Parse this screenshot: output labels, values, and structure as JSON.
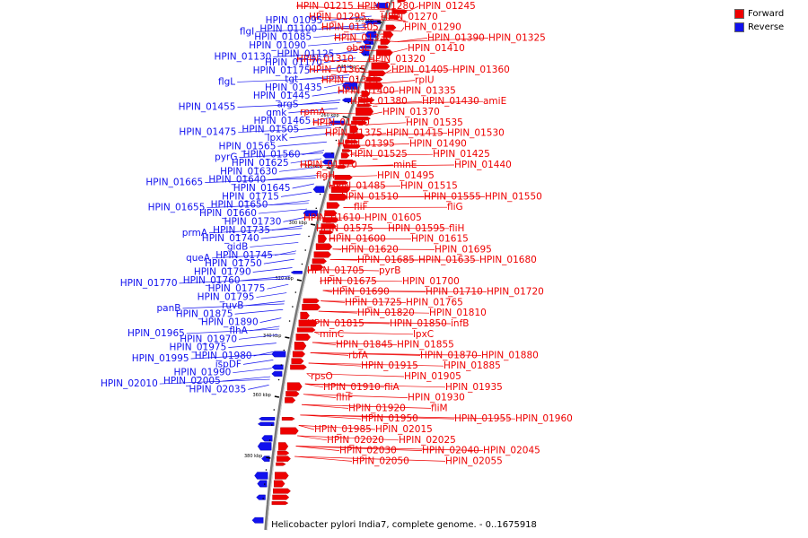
{
  "caption": "Helicobacter pylori India7, complete genome. - 0..1675918",
  "legend": [
    {
      "label": "Forward",
      "color": "#ee0000"
    },
    {
      "label": "Reverse",
      "color": "#1111ee"
    }
  ],
  "colors": {
    "forward": "#ee0000",
    "reverse": "#1111ee",
    "backbone": "#777777"
  },
  "scale_labels": [
    "220 kbp",
    "240 kbp",
    "260 kbp",
    "280 kbp",
    "300 kbp",
    "320 kbp",
    "340 kbp",
    "360 kbp",
    "380 kbp"
  ],
  "forward_labels": [
    "HPIN_01215",
    "HPIN_01280",
    "HPIN_01245",
    "HPIN_01295",
    "HPIN_01270",
    "HPIN_01305",
    "HPIN_01290",
    "HPIN_01330",
    "HPIN_01390",
    "HPIN_01325",
    "obgE",
    "HPIN_01410",
    "HPIN_01310",
    "HPIN_01320",
    "HPIN_01365",
    "HPIN_01405",
    "HPIN_01360",
    "HPIN_01315",
    "rplU",
    "HPIN_01400",
    "HPIN_01335",
    "HPIN_01380",
    "HPIN_01430",
    "amiE",
    "rpmA",
    "HPIN_01370",
    "HPIN_01420",
    "HPIN_01535",
    "HPIN_01375",
    "HPIN_01415",
    "HPIN_01530",
    "HPIN_01395",
    "HPIN_01490",
    "HPIN_01525",
    "HPIN_01425",
    "HPIN_01470",
    "minE",
    "HPIN_01440",
    "flgH",
    "HPIN_01495",
    "HPIN_01485",
    "HPIN_01515",
    "HPIN_01510",
    "HPIN_01555",
    "HPIN_01550",
    "fliF",
    "fliG",
    "HPIN_01610",
    "HPIN_01605",
    "HPIN_01575",
    "HPIN_01595",
    "fliH",
    "HPIN_01600",
    "HPIN_01615",
    "HPIN_01620",
    "HPIN_01695",
    "HPIN_01685",
    "HPIN_01635",
    "HPIN_01680",
    "HPIN_01705",
    "pyrB",
    "HPIN_01675",
    "HPIN_01700",
    "HPIN_01690",
    "HPIN_01710",
    "HPIN_01720",
    "HPIN_01725",
    "HPIN_01765",
    "HPIN_01820",
    "HPIN_01810",
    "HPIN_01815",
    "HPIN_01850",
    "infB",
    "minC",
    "lpxC",
    "HPIN_01845",
    "HPIN_01855",
    "rbfA",
    "HPIN_01870",
    "HPIN_01880",
    "HPIN_01915",
    "HPIN_01885",
    "rpsO",
    "HPIN_01905",
    "HPIN_01910",
    "fliA",
    "HPIN_01935",
    "flhF",
    "HPIN_01930",
    "HPIN_01920",
    "fliM",
    "HPIN_01950",
    "HPIN_01955",
    "HPIN_01960",
    "HPIN_01985",
    "HPIN_02015",
    "HPIN_02020",
    "HPIN_02025",
    "HPIN_02030",
    "HPIN_02040",
    "HPIN_02045",
    "HPIN_02050",
    "HPIN_02055"
  ],
  "reverse_labels": [
    "HPIN_01095",
    "HPIN_01100",
    "flgI",
    "HPIN_01085",
    "HPIN_01090",
    "HPIN_01125",
    "HPIN_01130",
    "HPIN_01170",
    "HPIN_01175",
    "tgt",
    "flgL",
    "HPIN_01435",
    "HPIN_01445",
    "argS",
    "HPIN_01455",
    "gmk",
    "HPIN_01465",
    "HPIN_01505",
    "HPIN_01475",
    "lpxK",
    "HPIN_01565",
    "HPIN_01560",
    "pyrG",
    "HPIN_01625",
    "HPIN_01630",
    "HPIN_01640",
    "HPIN_01665",
    "HPIN_01645",
    "HPIN_01715",
    "HPIN_01650",
    "HPIN_01655",
    "HPIN_01660",
    "HPIN_01730",
    "HPIN_01735",
    "prmA",
    "HPIN_01740",
    "gidB",
    "HPIN_01745",
    "queA",
    "HPIN_01750",
    "HPIN_01790",
    "HPIN_01760",
    "HPIN_01770",
    "HPIN_01775",
    "HPIN_01795",
    "ruvB",
    "panB",
    "HPIN_01875",
    "HPIN_01890",
    "flhA",
    "HPIN_01965",
    "HPIN_01970",
    "HPIN_01975",
    "HPIN_01980",
    "HPIN_01995",
    "ispDF",
    "HPIN_01990",
    "HPIN_02005",
    "HPIN_02010",
    "HPIN_02035"
  ]
}
